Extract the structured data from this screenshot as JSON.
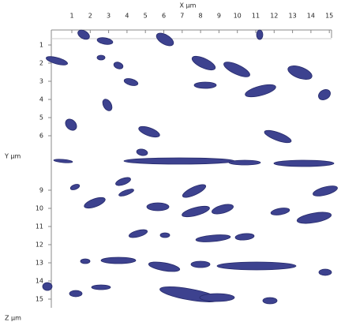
{
  "x_axis": {
    "title": "X µm",
    "labels": [
      "1",
      "2",
      "3",
      "4",
      "5",
      "6",
      "7",
      "8",
      "9",
      "10",
      "11",
      "12",
      "13",
      "14",
      "15"
    ]
  },
  "y_axis": {
    "title": "Y µm",
    "labels": [
      "1",
      "2",
      "3",
      "4",
      "5",
      "6",
      "9",
      "10",
      "11",
      "12",
      "13",
      "14",
      "15"
    ]
  },
  "z_axis": {
    "title": "Z µm"
  }
}
